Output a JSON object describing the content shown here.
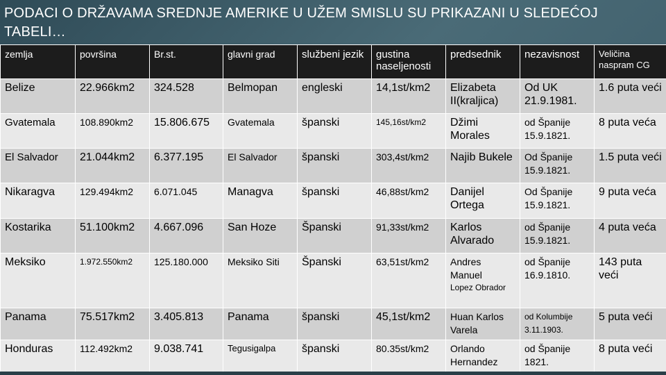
{
  "title": "PODACI O DRŽAVAMA SREDNJE AMERIKE U UŽEM SMISLU SU PRIKAZANI U SLEDEĆOJ TABELI…",
  "headers": [
    "zemlja",
    "površina",
    "Br.st.",
    "glavni grad",
    "službeni jezik",
    "gustina naseljenosti",
    "predsednik",
    "nezavisnost",
    "Veličina naspram CG"
  ],
  "rows": [
    {
      "zemlja": "Belize",
      "povrsina": "22.966km2",
      "brst": "324.528",
      "grad": "Belmopan",
      "jezik": "engleski",
      "gustina": "14,1st/km2",
      "predsednik": "Elizabeta II(kraljica)",
      "predsednik_note": "",
      "nezavisnost": "Od UK 21.9.1981.",
      "velicina": "1.6 puta veći"
    },
    {
      "zemlja": "Gvatemala",
      "povrsina": "108.890km2",
      "brst": "15.806.675",
      "grad": "Gvatemala",
      "jezik": "španski",
      "gustina": "145,16st/km2",
      "predsednik": "Džimi Morales",
      "predsednik_note": "",
      "nezavisnost": "od Španije 15.9.1821.",
      "velicina": "8 puta veća"
    },
    {
      "zemlja": "El Salvador",
      "povrsina": "21.044km2",
      "brst": "6.377.195",
      "grad": "El Salvador",
      "jezik": "španski",
      "gustina": "303,4st/km2",
      "predsednik": "Najib Bukele",
      "predsednik_note": "",
      "nezavisnost": "Od Španije 15.9.1821.",
      "velicina": "1.5 puta veći"
    },
    {
      "zemlja": "Nikaragva",
      "povrsina": "129.494km2",
      "brst": "6.071.045",
      "grad": "Managva",
      "jezik": "španski",
      "gustina": "46,88st/km2",
      "predsednik": "Danijel Ortega",
      "predsednik_note": "",
      "nezavisnost": "Od Španije 15.9.1821.",
      "velicina": "9 puta veća"
    },
    {
      "zemlja": "Kostarika",
      "povrsina": "51.100km2",
      "brst": "4.667.096",
      "grad": "San Hoze",
      "jezik": "Španski",
      "gustina": "91,33st/km2",
      "predsednik": "Karlos Alvarado",
      "predsednik_note": "",
      "nezavisnost": "od Španije 15.9.1821.",
      "velicina": "4 puta veća"
    },
    {
      "zemlja": "Meksiko",
      "povrsina": "1.972.550km2",
      "brst": "125.180.000",
      "grad": "Meksiko Siti",
      "jezik": "Španski",
      "gustina": "63,51st/km2",
      "predsednik": "Andres Manuel",
      "predsednik_note": "Lopez Obrador",
      "nezavisnost": "od Španije 16.9.1810.",
      "velicina": "143 puta veći"
    },
    {
      "zemlja": "Panama",
      "povrsina": "75.517km2",
      "brst": "3.405.813",
      "grad": "Panama",
      "jezik": "španski",
      "gustina": "45,1st/km2",
      "predsednik": "Huan Karlos Varela",
      "predsednik_note": "",
      "nezavisnost": "od Kolumbije 3.11.1903.",
      "velicina": "5 puta veći"
    },
    {
      "zemlja": "Honduras",
      "povrsina": "112.492km2",
      "brst": "9.038.741",
      "grad": "Tegusigalpa",
      "jezik": "španski",
      "gustina": "80.35st/km2",
      "predsednik": "Orlando Hernandez",
      "predsednik_note": "",
      "nezavisnost": "od Španije 1821.",
      "velicina": "8 puta veći"
    }
  ]
}
